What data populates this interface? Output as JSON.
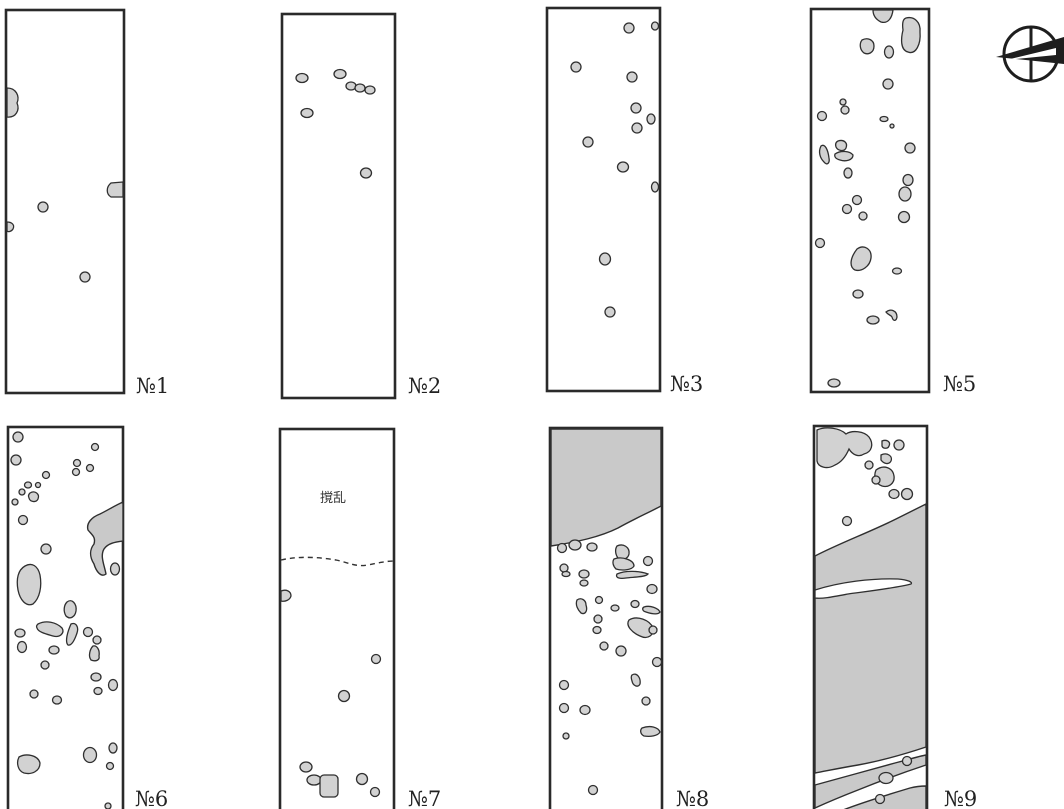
{
  "trenches": [
    {
      "id": "t1",
      "label": "№1"
    },
    {
      "id": "t2",
      "label": "№2"
    },
    {
      "id": "t3",
      "label": "№3"
    },
    {
      "id": "t5",
      "label": "№5"
    },
    {
      "id": "t6",
      "label": "№6"
    },
    {
      "id": "t7",
      "label": "№7",
      "note": "撹乱"
    },
    {
      "id": "t8",
      "label": "№8"
    },
    {
      "id": "t9",
      "label": "№9"
    }
  ],
  "north_arrow": {
    "icon": "north-arrow-icon"
  },
  "colors": {
    "fill": "#d2d2d2",
    "stroke": "#2f2f2f",
    "frame": "#2a2a2a"
  }
}
